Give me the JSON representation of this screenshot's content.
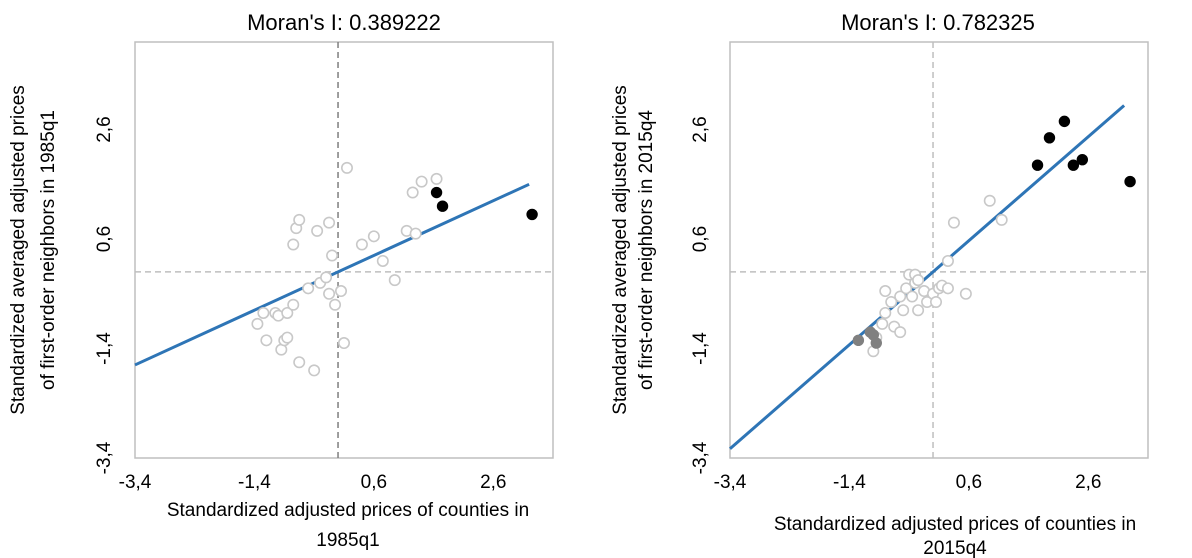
{
  "chart_data": [
    {
      "type": "scatter",
      "title": "Moran's I: 0.389222",
      "xlabel_lines": [
        "Standardized adjusted prices of counties in",
        "1985q1"
      ],
      "ylabel_lines": [
        "Standardized averaged adjusted prices",
        "of first-order neighbors in 1985q1"
      ],
      "xlim": [
        -3.4,
        3.6
      ],
      "ylim": [
        -3.4,
        4.2
      ],
      "x_ticks": [
        -3.4,
        -1.4,
        0.6,
        2.6
      ],
      "x_tick_labels": [
        "-3,4",
        "-1,4",
        "0,6",
        "2,6"
      ],
      "y_ticks": [
        -3.4,
        -1.4,
        0.6,
        2.6
      ],
      "y_tick_labels": [
        "-3,4",
        "-1,4",
        "0,6",
        "2,6"
      ],
      "reference_lines": {
        "x": 0,
        "y": 0
      },
      "grid": false,
      "series": [
        {
          "style": "hollow",
          "color": "#c8c8c8",
          "points": [
            [
              -1.35,
              -0.95
            ],
            [
              -1.25,
              -0.75
            ],
            [
              -1.2,
              -1.25
            ],
            [
              -1.05,
              -0.75
            ],
            [
              -1.0,
              -0.8
            ],
            [
              -0.95,
              -1.42
            ],
            [
              -0.9,
              -1.25
            ],
            [
              -0.85,
              -1.2
            ],
            [
              -0.85,
              -0.75
            ],
            [
              -0.75,
              -0.6
            ],
            [
              -0.75,
              0.5
            ],
            [
              -0.7,
              0.8
            ],
            [
              -0.65,
              0.95
            ],
            [
              -0.65,
              -1.65
            ],
            [
              -0.5,
              -0.3
            ],
            [
              -0.4,
              -1.8
            ],
            [
              -0.35,
              0.75
            ],
            [
              -0.3,
              -0.2
            ],
            [
              -0.2,
              -0.1
            ],
            [
              -0.15,
              0.9
            ],
            [
              -0.15,
              -0.4
            ],
            [
              -0.1,
              0.3
            ],
            [
              -0.05,
              -0.6
            ],
            [
              0.05,
              -0.35
            ],
            [
              0.1,
              -1.3
            ],
            [
              0.15,
              1.9
            ],
            [
              0.4,
              0.5
            ],
            [
              0.6,
              0.65
            ],
            [
              0.75,
              0.2
            ],
            [
              0.95,
              -0.15
            ],
            [
              1.15,
              0.75
            ],
            [
              1.25,
              1.45
            ],
            [
              1.3,
              0.7
            ],
            [
              1.4,
              1.65
            ],
            [
              1.65,
              1.7
            ]
          ]
        },
        {
          "style": "filled",
          "color": "#000000",
          "points": [
            [
              1.65,
              1.45
            ],
            [
              1.75,
              1.2
            ],
            [
              3.25,
              1.05
            ]
          ]
        }
      ],
      "regression_line": {
        "color": "#2e75b6",
        "slope": 0.5,
        "intercept": 0
      }
    },
    {
      "type": "scatter",
      "title": "Moran's I: 0.782325",
      "xlabel_lines": [
        "Standardized adjusted prices of counties in",
        "2015q4"
      ],
      "ylabel_lines": [
        "Standardized averaged adjusted prices",
        "of first-order neighbors in 2015q4"
      ],
      "xlim": [
        -3.4,
        3.6
      ],
      "ylim": [
        -3.4,
        4.2
      ],
      "x_ticks": [
        -3.4,
        -1.4,
        0.6,
        2.6
      ],
      "x_tick_labels": [
        "-3,4",
        "-1,4",
        "0,6",
        "2,6"
      ],
      "y_ticks": [
        -3.4,
        -1.4,
        0.6,
        2.6
      ],
      "y_tick_labels": [
        "-3,4",
        "-1,4",
        "0,6",
        "2,6"
      ],
      "reference_lines": {
        "x": 0,
        "y": 0
      },
      "grid": false,
      "series": [
        {
          "style": "hollow",
          "color": "#c8c8c8",
          "points": [
            [
              -1.0,
              -1.45
            ],
            [
              -0.95,
              -1.2
            ],
            [
              -0.85,
              -0.95
            ],
            [
              -0.8,
              -0.75
            ],
            [
              -0.8,
              -0.35
            ],
            [
              -0.7,
              -0.55
            ],
            [
              -0.65,
              -1.0
            ],
            [
              -0.55,
              -0.45
            ],
            [
              -0.55,
              -1.1
            ],
            [
              -0.5,
              -0.7
            ],
            [
              -0.45,
              -0.3
            ],
            [
              -0.4,
              -0.05
            ],
            [
              -0.35,
              -0.45
            ],
            [
              -0.3,
              -0.2
            ],
            [
              -0.3,
              -0.05
            ],
            [
              -0.25,
              -0.15
            ],
            [
              -0.25,
              -0.7
            ],
            [
              -0.15,
              -0.35
            ],
            [
              -0.1,
              -0.55
            ],
            [
              0.0,
              -0.4
            ],
            [
              0.05,
              -0.55
            ],
            [
              0.1,
              -0.3
            ],
            [
              0.15,
              -0.25
            ],
            [
              0.25,
              -0.3
            ],
            [
              0.25,
              0.2
            ],
            [
              0.35,
              0.9
            ],
            [
              0.55,
              -0.4
            ],
            [
              0.95,
              1.3
            ],
            [
              1.15,
              0.95
            ]
          ]
        },
        {
          "style": "filled",
          "color": "#000000",
          "points": [
            [
              1.75,
              1.95
            ],
            [
              1.95,
              2.45
            ],
            [
              2.2,
              2.75
            ],
            [
              2.35,
              1.95
            ],
            [
              2.5,
              2.05
            ],
            [
              3.3,
              1.65
            ]
          ]
        },
        {
          "style": "filled",
          "color": "#808080",
          "points": [
            [
              -1.25,
              -1.25
            ],
            [
              -1.05,
              -1.1
            ],
            [
              -1.0,
              -1.15
            ],
            [
              -0.95,
              -1.3
            ]
          ]
        }
      ],
      "regression_line": {
        "color": "#2e75b6",
        "slope": 0.95,
        "intercept": 0
      }
    }
  ]
}
